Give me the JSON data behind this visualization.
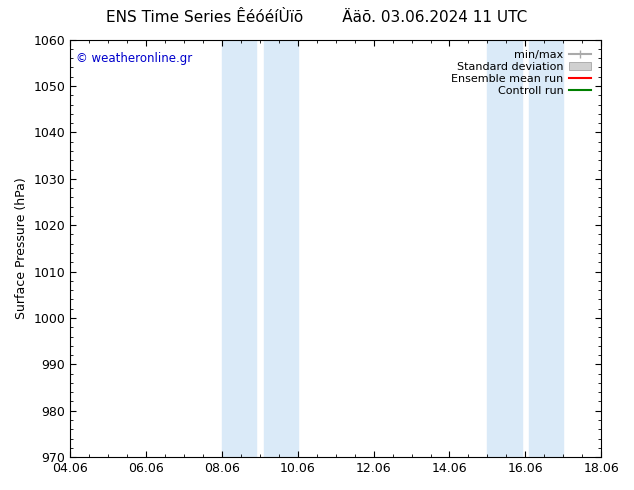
{
  "title_left": "ENS Time Series ÊéóéíÙïõ",
  "title_right": "Ääõ. 03.06.2024 11 UTC",
  "ylabel": "Surface Pressure (hPa)",
  "ylim": [
    970,
    1060
  ],
  "yticks": [
    970,
    980,
    990,
    1000,
    1010,
    1020,
    1030,
    1040,
    1050,
    1060
  ],
  "xtick_labels": [
    "04.06",
    "06.06",
    "08.06",
    "10.06",
    "12.06",
    "14.06",
    "16.06",
    "18.06"
  ],
  "xtick_positions": [
    0,
    2,
    4,
    6,
    8,
    10,
    12,
    14
  ],
  "shaded_bands": [
    {
      "x_start": 4.0,
      "x_end": 4.9
    },
    {
      "x_start": 5.1,
      "x_end": 6.0
    },
    {
      "x_start": 11.0,
      "x_end": 11.9
    },
    {
      "x_start": 12.1,
      "x_end": 13.0
    }
  ],
  "shade_color": "#daeaf8",
  "watermark": "© weatheronline.gr",
  "legend_items": [
    {
      "label": "min/max",
      "color": "#aaaaaa",
      "lw": 1.5,
      "type": "line_with_ticks"
    },
    {
      "label": "Standard deviation",
      "color": "#d0d0d0",
      "lw": 6,
      "type": "patch"
    },
    {
      "label": "Ensemble mean run",
      "color": "#ff0000",
      "lw": 1.5,
      "type": "line"
    },
    {
      "label": "Controll run",
      "color": "#008000",
      "lw": 1.5,
      "type": "line"
    }
  ],
  "bg_color": "#ffffff",
  "plot_bg_color": "#ffffff",
  "title_fontsize": 11,
  "tick_fontsize": 9,
  "ylabel_fontsize": 9,
  "watermark_fontsize": 8.5,
  "legend_fontsize": 8
}
